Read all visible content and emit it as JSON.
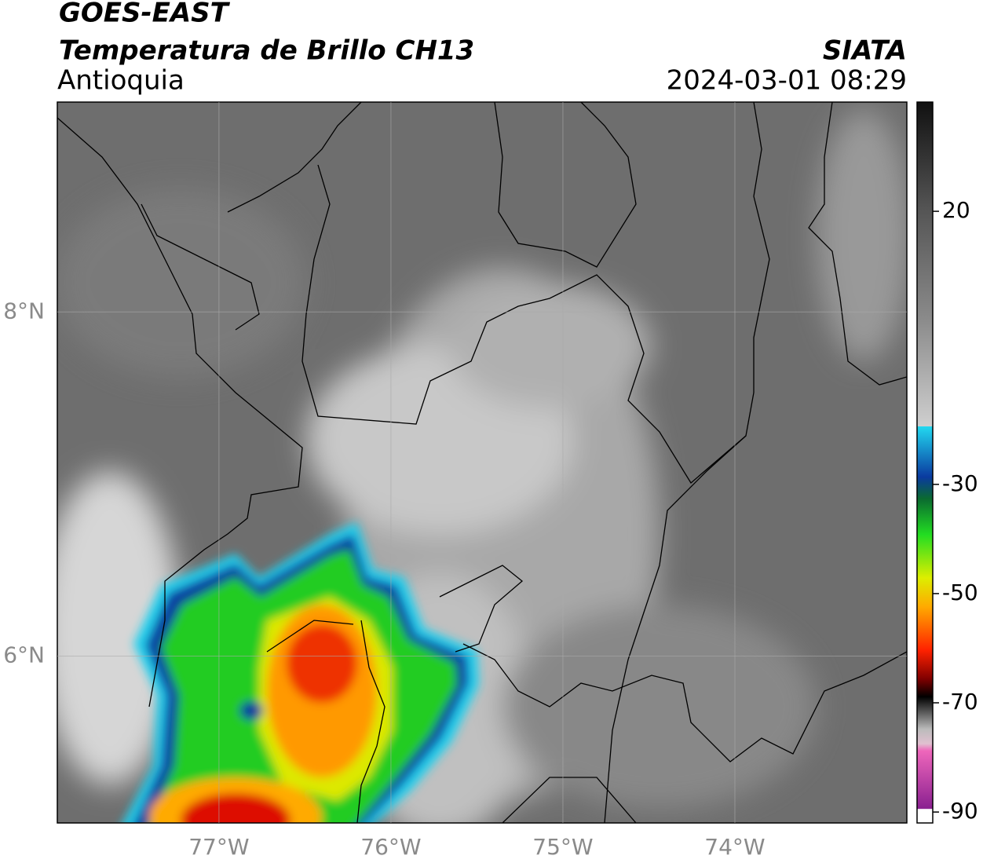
{
  "header": {
    "satellite": "GOES-EAST",
    "product": "Temperatura de Brillo CH13",
    "region": "Antioquia",
    "source": "SIATA",
    "datetime": "2024-03-01 08:29"
  },
  "map": {
    "xlim": [
      -77.94,
      -73.0
    ],
    "ylim": [
      5.03,
      9.22
    ],
    "xticks": [
      {
        "value": -77,
        "label": "77°W"
      },
      {
        "value": -76,
        "label": "76°W"
      },
      {
        "value": -75,
        "label": "75°W"
      },
      {
        "value": -74,
        "label": "74°W"
      }
    ],
    "yticks": [
      {
        "value": 8,
        "label": "8°N"
      },
      {
        "value": 6,
        "label": "6°N"
      }
    ],
    "grid": true
  },
  "colorbar": {
    "clim": [
      -92,
      40
    ],
    "ticks": [
      20,
      -30,
      -50,
      -70,
      -90
    ]
  }
}
